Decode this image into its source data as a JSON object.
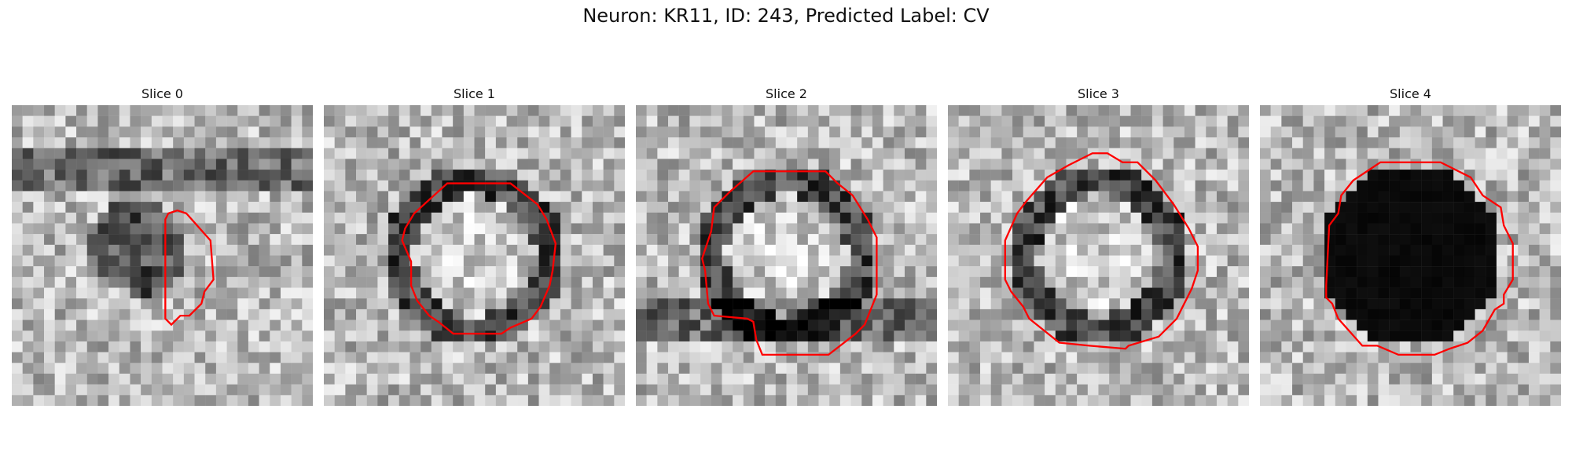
{
  "figure": {
    "title": "Neuron: KR11, ID: 243, Predicted Label: CV"
  },
  "panels": [
    {
      "title": "Slice 0",
      "kind": "small-ring",
      "seed": 11,
      "contour": [
        [
          52,
          36
        ],
        [
          55,
          35
        ],
        [
          58,
          36
        ],
        [
          66,
          45
        ],
        [
          67,
          58
        ],
        [
          64,
          62
        ],
        [
          63,
          66
        ],
        [
          59,
          70
        ],
        [
          56,
          70
        ],
        [
          53,
          73
        ],
        [
          51,
          71
        ],
        [
          51,
          38
        ]
      ]
    },
    {
      "title": "Slice 1",
      "kind": "ring",
      "seed": 23,
      "contour": [
        [
          41,
          26
        ],
        [
          62,
          26
        ],
        [
          71,
          33
        ],
        [
          74,
          38
        ],
        [
          77,
          46
        ],
        [
          76,
          55
        ],
        [
          75,
          60
        ],
        [
          72,
          67
        ],
        [
          69,
          71
        ],
        [
          62,
          74
        ],
        [
          59,
          76
        ],
        [
          43,
          76
        ],
        [
          38,
          72
        ],
        [
          35,
          70
        ],
        [
          31,
          65
        ],
        [
          29,
          60
        ],
        [
          29,
          52
        ],
        [
          26,
          45
        ],
        [
          27,
          41
        ],
        [
          30,
          36
        ]
      ]
    },
    {
      "title": "Slice 2",
      "kind": "ring-dark-bottom",
      "seed": 37,
      "contour": [
        [
          39,
          22
        ],
        [
          63,
          22
        ],
        [
          67,
          26
        ],
        [
          72,
          30
        ],
        [
          77,
          38
        ],
        [
          80,
          44
        ],
        [
          80,
          63
        ],
        [
          76,
          73
        ],
        [
          73,
          76
        ],
        [
          64,
          83
        ],
        [
          59,
          83
        ],
        [
          42,
          83
        ],
        [
          40,
          78
        ],
        [
          39,
          72
        ],
        [
          37,
          71
        ],
        [
          26,
          70
        ],
        [
          24,
          66
        ],
        [
          23,
          55
        ],
        [
          22,
          51
        ],
        [
          25,
          42
        ],
        [
          26,
          34
        ],
        [
          31,
          29
        ]
      ]
    },
    {
      "title": "Slice 3",
      "kind": "ring",
      "seed": 53,
      "contour": [
        [
          48,
          16
        ],
        [
          53,
          16
        ],
        [
          58,
          19
        ],
        [
          63,
          19
        ],
        [
          69,
          25
        ],
        [
          75,
          33
        ],
        [
          80,
          41
        ],
        [
          83,
          47
        ],
        [
          83,
          55
        ],
        [
          81,
          61
        ],
        [
          79,
          65
        ],
        [
          76,
          71
        ],
        [
          70,
          77
        ],
        [
          60,
          80
        ],
        [
          59,
          81
        ],
        [
          47,
          80
        ],
        [
          37,
          79
        ],
        [
          27,
          71
        ],
        [
          25,
          67
        ],
        [
          21,
          62
        ],
        [
          19,
          58
        ],
        [
          19,
          45
        ],
        [
          23,
          36
        ],
        [
          26,
          32
        ],
        [
          33,
          24
        ],
        [
          40,
          20
        ]
      ]
    },
    {
      "title": "Slice 4",
      "kind": "filled",
      "seed": 71,
      "contour": [
        [
          40,
          19
        ],
        [
          60,
          19
        ],
        [
          70,
          24
        ],
        [
          74,
          30
        ],
        [
          80,
          34
        ],
        [
          81,
          40
        ],
        [
          84,
          46
        ],
        [
          84,
          58
        ],
        [
          81,
          63
        ],
        [
          81,
          66
        ],
        [
          78,
          68
        ],
        [
          74,
          75
        ],
        [
          69,
          79
        ],
        [
          63,
          81
        ],
        [
          58,
          83
        ],
        [
          46,
          83
        ],
        [
          39,
          80
        ],
        [
          34,
          80
        ],
        [
          26,
          71
        ],
        [
          24,
          66
        ],
        [
          22,
          64
        ],
        [
          22,
          60
        ],
        [
          23,
          40
        ],
        [
          26,
          36
        ],
        [
          27,
          30
        ],
        [
          31,
          25
        ]
      ]
    }
  ]
}
